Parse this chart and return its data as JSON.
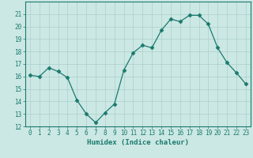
{
  "x": [
    0,
    1,
    2,
    3,
    4,
    5,
    6,
    7,
    8,
    9,
    10,
    11,
    12,
    13,
    14,
    15,
    16,
    17,
    18,
    19,
    20,
    21,
    22,
    23
  ],
  "y": [
    16.1,
    16.0,
    16.7,
    16.4,
    15.9,
    14.1,
    13.0,
    12.3,
    13.1,
    13.8,
    16.5,
    17.9,
    18.5,
    18.3,
    19.7,
    20.6,
    20.4,
    20.9,
    20.9,
    20.2,
    18.3,
    17.1,
    16.3,
    15.4
  ],
  "line_color": "#1a7a6e",
  "marker": "D",
  "marker_size": 2.5,
  "bg_color": "#cce8e4",
  "grid_color": "#aacfcb",
  "xlabel": "Humidex (Indice chaleur)",
  "ylim": [
    12,
    22
  ],
  "xlim": [
    -0.5,
    23.5
  ],
  "yticks": [
    12,
    13,
    14,
    15,
    16,
    17,
    18,
    19,
    20,
    21
  ],
  "xticks": [
    0,
    1,
    2,
    3,
    4,
    5,
    6,
    7,
    8,
    9,
    10,
    11,
    12,
    13,
    14,
    15,
    16,
    17,
    18,
    19,
    20,
    21,
    22,
    23
  ],
  "tick_fontsize": 5.5,
  "xlabel_fontsize": 6.5
}
